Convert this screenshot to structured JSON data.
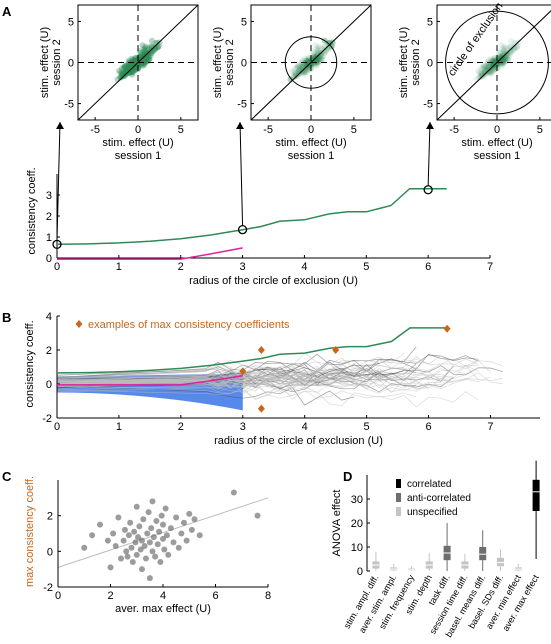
{
  "colors": {
    "green": "#2e8b57",
    "magenta": "#e0219b",
    "blue": "#3a74e8",
    "orange": "#c8671c",
    "gray": "#bdbdbd",
    "dark": "#222222",
    "dot": "#5a5a5a"
  },
  "panel_letters": [
    "A",
    "B",
    "C",
    "D"
  ],
  "chart_data": [
    {
      "id": "A-scatter",
      "type": "scatter",
      "panels": [
        "left",
        "middle",
        "right"
      ],
      "xlabel": "stim. effect (U) session 1",
      "ylabel": "stim. effect (U) session 2",
      "xlabel_lines": [
        "stim. effect (U)",
        "session 1"
      ],
      "ylabel_lines": [
        "stim. effect (U)",
        "session 2"
      ],
      "xlim": [
        -7,
        7
      ],
      "ylim": [
        -7,
        7
      ],
      "ticks": [
        -5,
        0,
        5
      ],
      "exclusion_radius": [
        0,
        3,
        6
      ],
      "circle_label": "circle of exclusion"
    },
    {
      "id": "A-line",
      "type": "line",
      "xlabel": "radius of the circle of exclusion (U)",
      "ylabel": "consistency coeff.",
      "xlim": [
        0,
        7
      ],
      "ylim": [
        0,
        4
      ],
      "xticks": [
        0,
        1,
        2,
        3,
        4,
        5,
        6,
        7
      ],
      "yticks": [
        0,
        1,
        2,
        3
      ],
      "series": [
        {
          "x": [
            0,
            0.5,
            1,
            1.5,
            2,
            2.5,
            2.8,
            3,
            3.3,
            3.6,
            4,
            4.4,
            4.7,
            5,
            5.4,
            5.7,
            6,
            6.3
          ],
          "y": [
            0.65,
            0.67,
            0.72,
            0.8,
            0.92,
            1.1,
            1.25,
            1.35,
            1.5,
            1.75,
            1.82,
            2.1,
            2.2,
            2.2,
            2.5,
            3.3,
            3.3,
            3.3
          ]
        },
        {
          "x": [
            0,
            0.5,
            1,
            1.5,
            2,
            2.5,
            3
          ],
          "y": [
            -0.05,
            -0.05,
            -0.05,
            -0.05,
            -0.05,
            0.2,
            0.48
          ]
        }
      ],
      "highlight_points": [
        [
          0,
          0.65
        ],
        [
          3,
          1.35
        ],
        [
          6,
          3.25
        ]
      ]
    },
    {
      "id": "B",
      "type": "line",
      "xlabel": "radius of the circle of exclusion (U)",
      "ylabel": "consistency coeff.",
      "xlim": [
        0,
        7.8
      ],
      "ylim": [
        -2,
        4
      ],
      "xticks": [
        0,
        1,
        2,
        3,
        4,
        5,
        6,
        7
      ],
      "yticks": [
        -2,
        0,
        2,
        4
      ],
      "legend": "examples of max consistency coefficients",
      "series": [
        {
          "x": [
            0,
            0.5,
            1,
            1.5,
            2,
            2.5,
            2.8,
            3,
            3.3,
            3.6,
            4,
            4.4,
            4.7,
            5,
            5.4,
            5.7,
            6,
            6.3
          ],
          "y": [
            0.65,
            0.67,
            0.72,
            0.8,
            0.92,
            1.1,
            1.25,
            1.35,
            1.5,
            1.75,
            1.82,
            2.1,
            2.2,
            2.2,
            2.5,
            3.3,
            3.3,
            3.3
          ]
        },
        {
          "x": [
            0,
            0.5,
            1,
            1.5,
            2,
            2.5,
            3
          ],
          "y": [
            -0.05,
            -0.05,
            -0.05,
            -0.05,
            -0.05,
            0.2,
            0.48
          ]
        }
      ],
      "max_points": [
        [
          3.3,
          2.0
        ],
        [
          4.5,
          2.0
        ],
        [
          6.3,
          3.25
        ],
        [
          3.0,
          0.75
        ],
        [
          3.3,
          -1.45
        ]
      ]
    },
    {
      "id": "C",
      "type": "scatter",
      "xlabel": "aver. max effect (U)",
      "ylabel": "max consistency coeff.",
      "xlim": [
        0,
        8
      ],
      "ylim": [
        -2,
        4
      ],
      "xticks": [
        0,
        2,
        4,
        6,
        8
      ],
      "yticks": [
        -2,
        0,
        2
      ],
      "fit": [
        [
          0,
          -0.9
        ],
        [
          8,
          3.0
        ]
      ],
      "points": [
        [
          1.0,
          0.2
        ],
        [
          1.3,
          0.9
        ],
        [
          1.6,
          1.5
        ],
        [
          1.9,
          0.6
        ],
        [
          2.0,
          -0.9
        ],
        [
          2.1,
          1.0
        ],
        [
          2.2,
          0.3
        ],
        [
          2.3,
          1.9
        ],
        [
          2.4,
          -0.4
        ],
        [
          2.5,
          0.6
        ],
        [
          2.55,
          1.2
        ],
        [
          2.6,
          0.0
        ],
        [
          2.65,
          -0.3
        ],
        [
          2.7,
          0.9
        ],
        [
          2.75,
          1.6
        ],
        [
          2.8,
          0.2
        ],
        [
          2.85,
          -0.6
        ],
        [
          2.9,
          1.1
        ],
        [
          2.95,
          0.5
        ],
        [
          3.0,
          2.5
        ],
        [
          3.0,
          -0.2
        ],
        [
          3.05,
          0.8
        ],
        [
          3.1,
          1.4
        ],
        [
          3.15,
          0.1
        ],
        [
          3.2,
          -1.0
        ],
        [
          3.2,
          0.6
        ],
        [
          3.25,
          1.8
        ],
        [
          3.3,
          0.3
        ],
        [
          3.35,
          -0.4
        ],
        [
          3.4,
          1.0
        ],
        [
          3.45,
          2.2
        ],
        [
          3.5,
          0.5
        ],
        [
          3.5,
          -1.5
        ],
        [
          3.55,
          1.3
        ],
        [
          3.6,
          0.0
        ],
        [
          3.6,
          2.8
        ],
        [
          3.65,
          0.8
        ],
        [
          3.7,
          -0.3
        ],
        [
          3.75,
          1.7
        ],
        [
          3.8,
          0.4
        ],
        [
          3.85,
          1.1
        ],
        [
          3.9,
          -0.6
        ],
        [
          3.95,
          2.0
        ],
        [
          4.0,
          0.7
        ],
        [
          4.0,
          1.5
        ],
        [
          4.05,
          0.1
        ],
        [
          4.1,
          2.4
        ],
        [
          4.15,
          0.9
        ],
        [
          4.2,
          -0.2
        ],
        [
          4.3,
          1.3
        ],
        [
          4.4,
          0.5
        ],
        [
          4.5,
          1.9
        ],
        [
          4.6,
          0.2
        ],
        [
          4.7,
          1.0
        ],
        [
          4.8,
          1.6
        ],
        [
          4.9,
          0.6
        ],
        [
          5.0,
          2.1
        ],
        [
          5.1,
          1.2
        ],
        [
          5.2,
          1.8
        ],
        [
          5.4,
          0.9
        ],
        [
          6.7,
          3.3
        ],
        [
          7.6,
          2.0
        ]
      ]
    },
    {
      "id": "D",
      "type": "box",
      "ylabel": "ANOVA effect",
      "ylim": [
        0,
        40
      ],
      "yticks": [
        0,
        10,
        20,
        30
      ],
      "legend": [
        "correlated",
        "anti-correlated",
        "unspecified"
      ],
      "categories": [
        "stim. ampl. diff.",
        "aver. stim. ampl.",
        "stim. frequency",
        "stim. depth",
        "task diff.",
        "session time diff.",
        "basel. means diff.",
        "basel. SDs diff.",
        "aver. min effect",
        "aver. max effect"
      ],
      "kind": [
        "unspecified",
        "unspecified",
        "unspecified",
        "unspecified",
        "anti-correlated",
        "unspecified",
        "anti-correlated",
        "unspecified",
        "unspecified",
        "correlated"
      ],
      "boxes": [
        [
          0,
          1,
          2.5,
          4,
          8
        ],
        [
          0,
          0.3,
          0.8,
          1.5,
          3
        ],
        [
          0,
          0.2,
          0.5,
          1,
          2
        ],
        [
          0,
          1,
          2.5,
          4,
          7.5
        ],
        [
          0,
          4.5,
          7.5,
          10.5,
          20
        ],
        [
          0,
          1,
          2.5,
          4,
          7
        ],
        [
          0,
          4.5,
          7,
          10,
          17
        ],
        [
          0,
          2,
          3.5,
          5.5,
          9
        ],
        [
          0,
          0.3,
          0.8,
          1.5,
          3
        ],
        [
          5,
          25,
          33,
          38,
          46
        ]
      ]
    }
  ]
}
